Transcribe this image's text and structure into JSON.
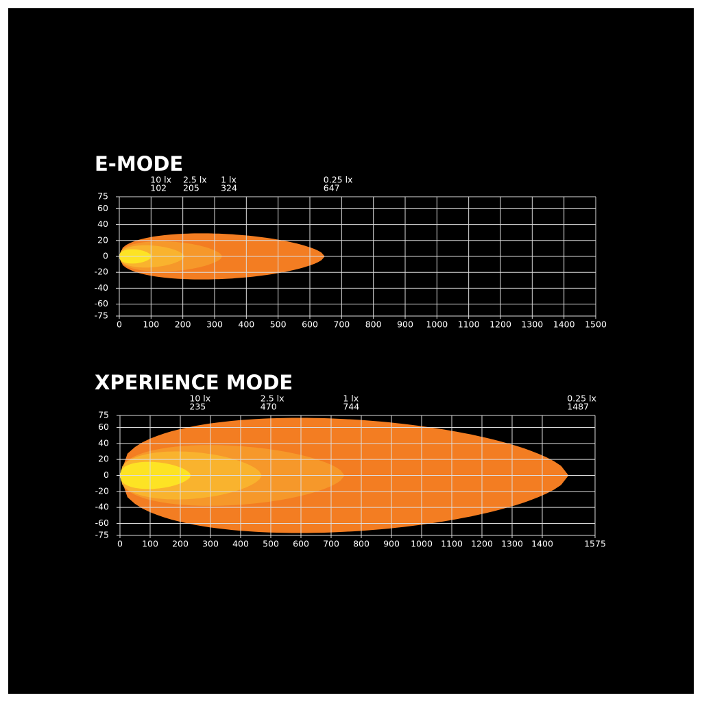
{
  "chart_data": [
    {
      "type": "beam",
      "title": "E-MODE",
      "series": [
        {
          "name": "10 lx",
          "value": 102,
          "half_width": 9,
          "color": "#fde324"
        },
        {
          "name": "2.5 lx",
          "value": 205,
          "half_width": 14,
          "color": "#f9b32e"
        },
        {
          "name": "1 lx",
          "value": 324,
          "half_width": 19,
          "color": "#f6982a"
        },
        {
          "name": "0.25 lx",
          "value": 647,
          "half_width": 29,
          "color": "#f37d22"
        }
      ],
      "xlim": [
        0,
        1500
      ],
      "xticks": [
        0,
        100,
        200,
        300,
        400,
        500,
        600,
        700,
        800,
        900,
        1000,
        1100,
        1200,
        1300,
        1400,
        1500
      ],
      "ylim": [
        -75,
        75
      ],
      "yticks": [
        75,
        60,
        40,
        20,
        0,
        -20,
        -40,
        -60,
        -75
      ],
      "grid": true
    },
    {
      "type": "beam",
      "title": "XPERIENCE MODE",
      "series": [
        {
          "name": "10 lx",
          "value": 235,
          "half_width": 17,
          "color": "#fde324"
        },
        {
          "name": "2.5 lx",
          "value": 470,
          "half_width": 30,
          "color": "#f9b32e"
        },
        {
          "name": "1 lx",
          "value": 744,
          "half_width": 38,
          "color": "#f6982a"
        },
        {
          "name": "0.25 lx",
          "value": 1487,
          "half_width": 72,
          "color": "#f37d22"
        }
      ],
      "xlim": [
        0,
        1575
      ],
      "xticks": [
        0,
        100,
        200,
        300,
        400,
        500,
        600,
        700,
        800,
        900,
        1000,
        1100,
        1200,
        1300,
        1400,
        1575
      ],
      "ylim": [
        -75,
        75
      ],
      "yticks": [
        75,
        60,
        40,
        20,
        0,
        -20,
        -40,
        -60,
        -75
      ],
      "grid": true
    }
  ]
}
